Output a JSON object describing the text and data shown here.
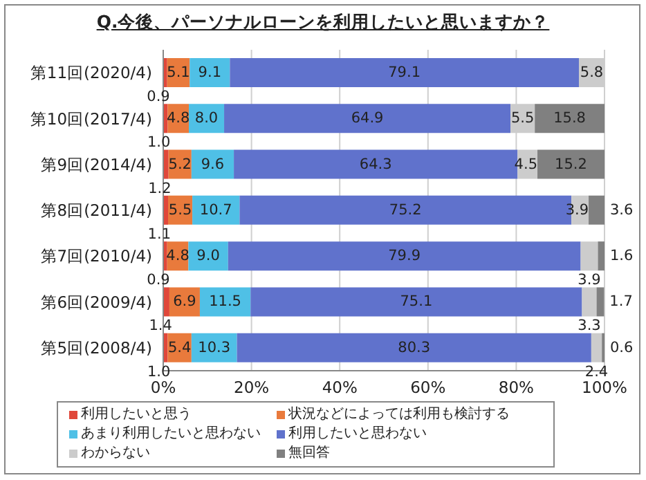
{
  "chart_data": {
    "type": "bar",
    "orientation": "horizontal",
    "stacked": true,
    "title": "Q.今後、パーソナルローンを利用したいと思いますか？",
    "categories": [
      "第11回(2020/4)",
      "第10回(2017/4)",
      "第9回(2014/4)",
      "第8回(2011/4)",
      "第7回(2010/4)",
      "第6回(2009/4)",
      "第5回(2008/4)"
    ],
    "series": [
      {
        "name": "利用したいと思う",
        "color": "#e0473a",
        "values": [
          0.9,
          1.0,
          1.2,
          1.1,
          0.9,
          1.4,
          1.0
        ],
        "value_labels": [
          "0.9",
          "1.0",
          "1.2",
          "1.1",
          "0.9",
          "1.4",
          "1.0"
        ]
      },
      {
        "name": "状況などによっては利用も検討する",
        "color": "#e97a3c",
        "values": [
          5.1,
          4.8,
          5.2,
          5.5,
          4.8,
          6.9,
          5.4
        ],
        "value_labels": [
          "5.1",
          "4.8",
          "5.2",
          "5.5",
          "4.8",
          "6.9",
          "5.4"
        ]
      },
      {
        "name": "あまり利用したいと思わない",
        "color": "#4fc0e6",
        "values": [
          9.1,
          8.0,
          9.6,
          10.7,
          9.0,
          11.5,
          10.3
        ],
        "value_labels": [
          "9.1",
          "8.0",
          "9.6",
          "10.7",
          "9.0",
          "11.5",
          "10.3"
        ]
      },
      {
        "name": "利用したいと思わない",
        "color": "#6072cc",
        "values": [
          79.1,
          64.9,
          64.3,
          75.2,
          79.9,
          75.1,
          80.3
        ],
        "value_labels": [
          "79.1",
          "64.9",
          "64.3",
          "75.2",
          "79.9",
          "75.1",
          "80.3"
        ]
      },
      {
        "name": "わからない",
        "color": "#cccccc",
        "values": [
          5.8,
          5.5,
          4.5,
          3.9,
          3.9,
          3.3,
          2.4
        ],
        "value_labels": [
          "5.8",
          "5.5",
          "4.5",
          "3.9",
          "3.9",
          "3.3",
          "2.4"
        ]
      },
      {
        "name": "無回答",
        "color": "#808080",
        "values": [
          null,
          15.8,
          15.2,
          3.6,
          1.6,
          1.7,
          0.6
        ],
        "value_labels": [
          null,
          "15.8",
          "15.2",
          "3.6",
          "1.6",
          "1.7",
          "0.6"
        ]
      }
    ],
    "xlim": [
      0,
      100
    ],
    "xticks": [
      {
        "value": 0,
        "label": "0%"
      },
      {
        "value": 20,
        "label": "20%"
      },
      {
        "value": 40,
        "label": "40%"
      },
      {
        "value": 60,
        "label": "60%"
      },
      {
        "value": 80,
        "label": "80%"
      },
      {
        "value": 100,
        "label": "100%"
      }
    ],
    "grid": "x",
    "legend": "bottom"
  }
}
